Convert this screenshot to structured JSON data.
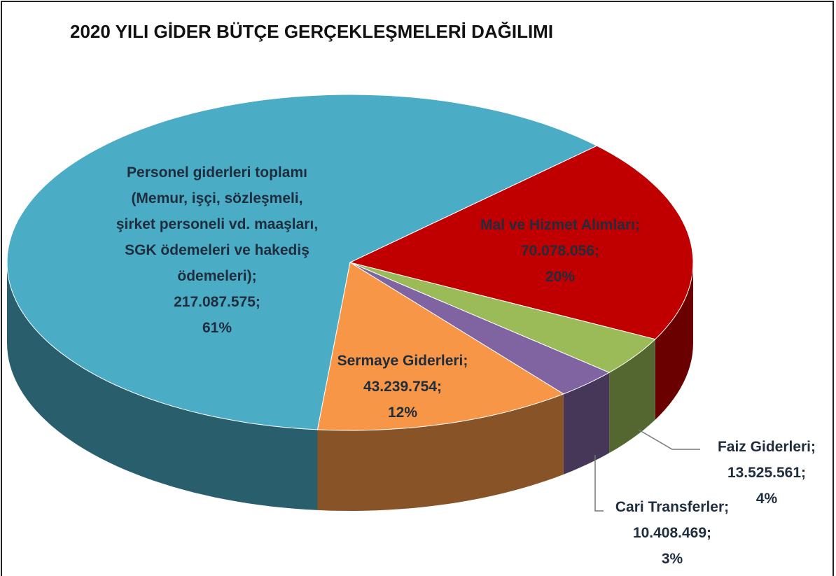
{
  "chart_data": {
    "type": "pie3d",
    "title": "2020 YILI GİDER BÜTÇE GERÇEKLEŞMELERİ DAĞILIMI",
    "categories": [
      "Personel giderleri toplamı (Memur, işçi, sözleşmeli, şirket personeli vd. maaşları, SGK ödemeleri ve hakediş ödemeleri)",
      "Mal ve Hizmet Alımları",
      "Faiz Giderleri",
      "Cari Transferler",
      "Sermaye Giderleri"
    ],
    "values": [
      217087575,
      70078056,
      13525561,
      10408469,
      43239754
    ],
    "value_labels": [
      "217.087.575",
      "70.078.056",
      "13.525.561",
      "10.408.469",
      "43.239.754"
    ],
    "percent_labels": [
      "61%",
      "20%",
      "4%",
      "3%",
      "12%"
    ],
    "label_separator": ";",
    "colors": [
      "#4bacc6",
      "#c00000",
      "#9bbb59",
      "#8064a2",
      "#f79646"
    ]
  }
}
